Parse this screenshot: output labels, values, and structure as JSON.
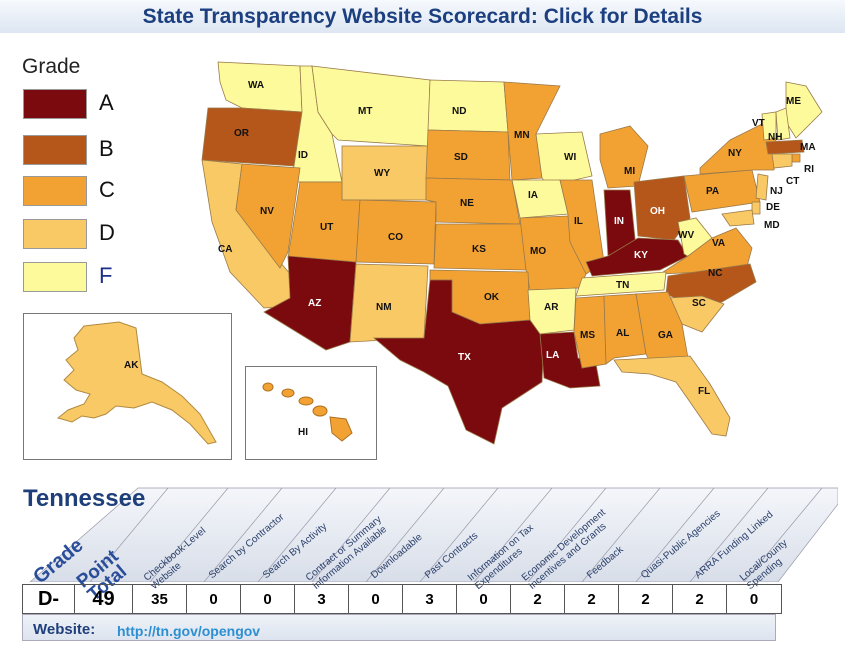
{
  "title": "State Transparency Website Scorecard: Click for Details",
  "legend": {
    "title": "Grade",
    "items": [
      {
        "grade": "A",
        "color": "#7a0a0e"
      },
      {
        "grade": "B",
        "color": "#b5561a"
      },
      {
        "grade": "C",
        "color": "#f2a233"
      },
      {
        "grade": "D",
        "color": "#f8c965"
      },
      {
        "grade": "F",
        "color": "#fdfa9c"
      }
    ]
  },
  "states": {
    "WA": "WA",
    "OR": "OR",
    "ID": "ID",
    "MT": "MT",
    "ND": "ND",
    "MN": "MN",
    "WY": "WY",
    "SD": "SD",
    "WI": "WI",
    "MI": "MI",
    "NV": "NV",
    "UT": "UT",
    "CO": "CO",
    "NE": "NE",
    "IA": "IA",
    "IL": "IL",
    "IN": "IN",
    "OH": "OH",
    "CA": "CA",
    "KS": "KS",
    "MO": "MO",
    "KY": "KY",
    "WV": "WV",
    "VA": "VA",
    "PA": "PA",
    "NY": "NY",
    "ME": "ME",
    "VT": "VT",
    "NH": "NH",
    "MA": "MA",
    "RI": "RI",
    "CT": "CT",
    "NJ": "NJ",
    "DE": "DE",
    "MD": "MD",
    "AZ": "AZ",
    "NM": "NM",
    "OK": "OK",
    "AR": "AR",
    "TN": "TN",
    "NC": "NC",
    "SC": "SC",
    "TX": "TX",
    "LA": "LA",
    "MS": "MS",
    "AL": "AL",
    "GA": "GA",
    "FL": "FL",
    "AK": "AK",
    "HI": "HI"
  },
  "detail": {
    "state_name": "Tennessee",
    "headers": [
      "Grade",
      "Point Total",
      "Checkbook-Level Website",
      "Search by Contractor",
      "Search By Activity",
      "Contract or Summary Information Available",
      "Downloadable",
      "Past Contracts",
      "Information on Tax Expenditures",
      "Economic Development Incentives and Grants",
      "Feedback",
      "Quasi-Public Agencies",
      "ARRA Funding Linked",
      "Local/County Spending"
    ],
    "values": [
      "D-",
      "49",
      "35",
      "0",
      "0",
      "3",
      "0",
      "3",
      "0",
      "2",
      "2",
      "2",
      "2",
      "0"
    ],
    "website_label": "Website:",
    "website_url": "http://tn.gov/opengov"
  }
}
